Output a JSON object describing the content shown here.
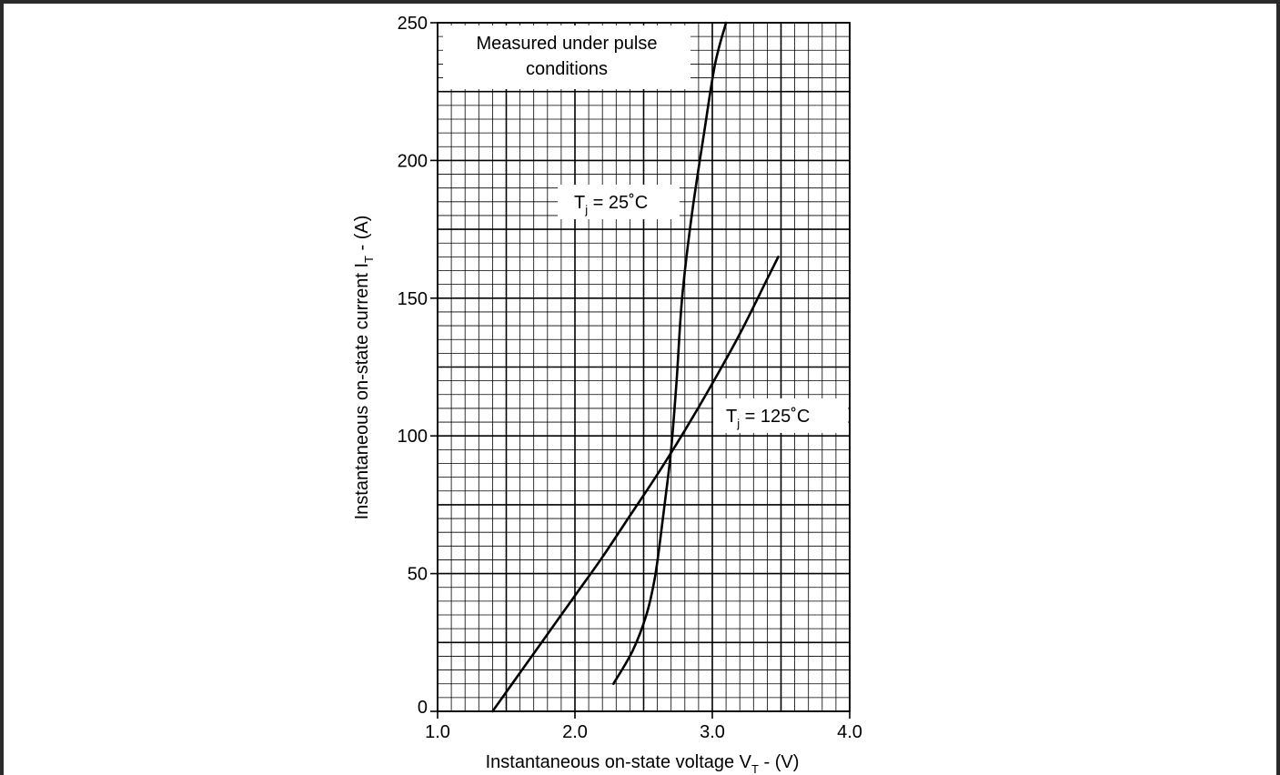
{
  "chart_data": {
    "type": "line",
    "xlabel_main": "Instantaneous on-state voltage V",
    "xlabel_sub": "T",
    "xlabel_tail": " - (V)",
    "ylabel_main": "Instantaneous on-state current I",
    "ylabel_sub": "T",
    "ylabel_tail": " - (A)",
    "xlim": [
      1.0,
      4.0
    ],
    "ylim": [
      0,
      250
    ],
    "x_ticks": [
      "1.0",
      "2.0",
      "3.0",
      "4.0"
    ],
    "y_ticks": [
      "0",
      "50",
      "100",
      "150",
      "200",
      "250"
    ],
    "grid": true,
    "series": [
      {
        "name": "Tj = 25˚C",
        "label_main": "T",
        "label_sub": "j",
        "label_tail": " = 25˚C",
        "x": [
          2.28,
          2.42,
          2.52,
          2.58,
          2.62,
          2.66,
          2.7,
          2.74,
          2.78,
          2.85,
          2.94,
          3.02,
          3.1
        ],
        "y": [
          10,
          22,
          35,
          48,
          62,
          78,
          95,
          120,
          150,
          180,
          210,
          235,
          250
        ]
      },
      {
        "name": "Tj = 125˚C",
        "label_main": "T",
        "label_sub": "j",
        "label_tail": " = 125˚C",
        "x": [
          1.4,
          1.6,
          1.8,
          2.0,
          2.2,
          2.4,
          2.6,
          2.8,
          3.0,
          3.2,
          3.4,
          3.48
        ],
        "y": [
          0,
          14,
          28,
          42,
          56,
          71,
          86,
          102,
          119,
          137,
          157,
          165
        ]
      }
    ],
    "annotation": {
      "line1": "Measured under pulse",
      "line2": "conditions"
    }
  }
}
